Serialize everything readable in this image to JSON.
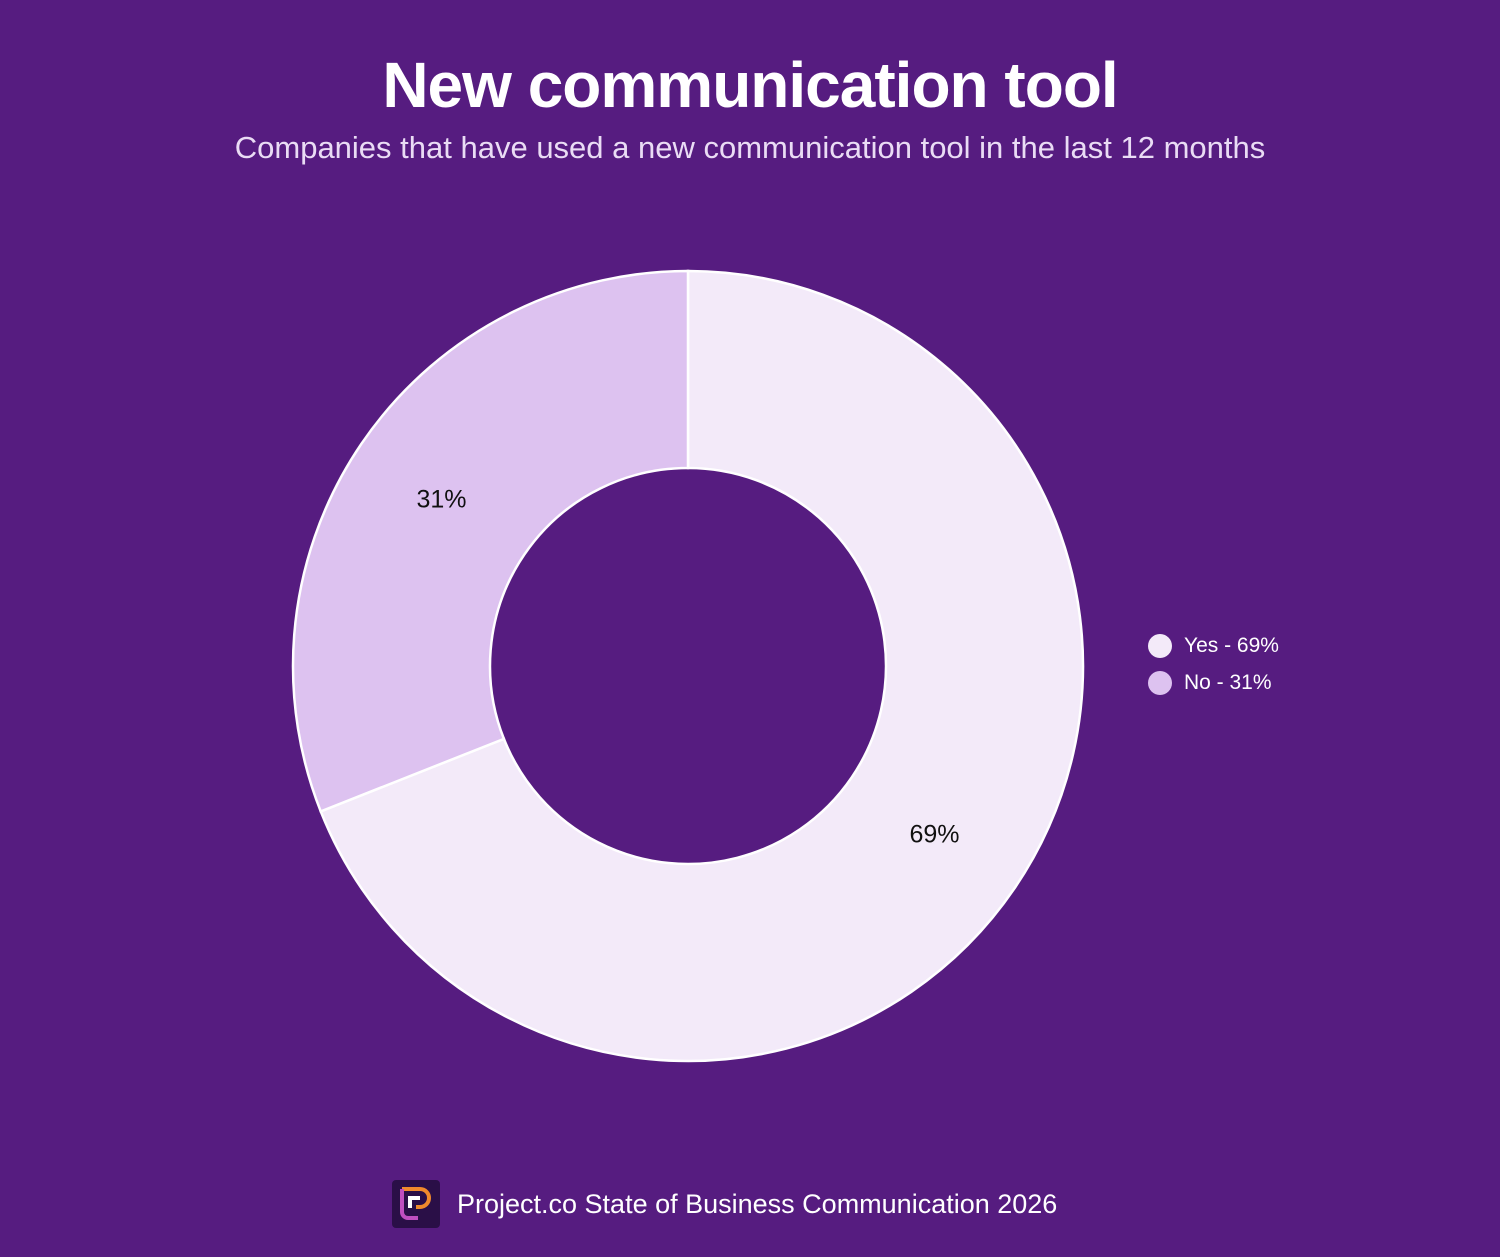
{
  "chart_data": {
    "type": "pie",
    "donut": true,
    "title": "New communication tool",
    "subtitle": "Companies that have used a new communication tool in the last 12 months",
    "slices": [
      {
        "name": "Yes",
        "value": 69,
        "label": "69%",
        "legend": "Yes - 69%",
        "color": "#f3eaf9"
      },
      {
        "name": "No",
        "value": 31,
        "label": "31%",
        "legend": "No - 31%",
        "color": "#ddc2f0"
      }
    ],
    "legend_position": "right"
  },
  "colors": {
    "background": "#561c80"
  },
  "footer": {
    "text": "Project.co State of Business Communication 2026",
    "logo_icon": "project-co-logo"
  }
}
